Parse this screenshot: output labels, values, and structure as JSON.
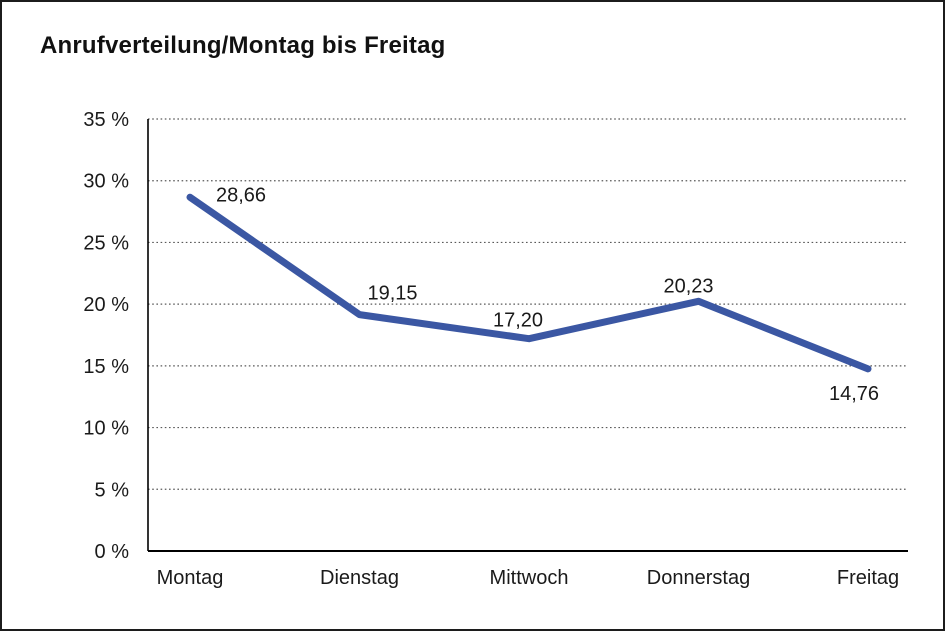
{
  "page": {
    "title": "Anrufverteilung/Montag bis Freitag"
  },
  "chart_data": {
    "type": "line",
    "title": "Anrufverteilung/Montag bis Freitag",
    "categories": [
      "Montag",
      "Dienstag",
      "Mittwoch",
      "Donnerstag",
      "Freitag"
    ],
    "values": [
      28.66,
      19.15,
      17.2,
      20.23,
      14.76
    ],
    "value_labels": [
      "28,66",
      "19,15",
      "17,20",
      "20,23",
      "14,76"
    ],
    "series": [
      {
        "name": "Anrufverteilung",
        "values": [
          28.66,
          19.15,
          17.2,
          20.23,
          14.76
        ]
      }
    ],
    "xlabel": "",
    "ylabel": "",
    "ylim": [
      0,
      35
    ],
    "y_step": 5,
    "y_tick_labels": [
      "0 %",
      "5 %",
      "10 %",
      "15 %",
      "20 %",
      "25 %",
      "30 %",
      "35 %"
    ],
    "grid": "horizontal-dotted",
    "legend": "none",
    "colors": {
      "line": "#3B57A3",
      "text": "#1a1a1a",
      "axis": "#000000",
      "gridline": "#5a5a5a",
      "background": "#ffffff",
      "frame_border": "#1c1c1c"
    }
  }
}
